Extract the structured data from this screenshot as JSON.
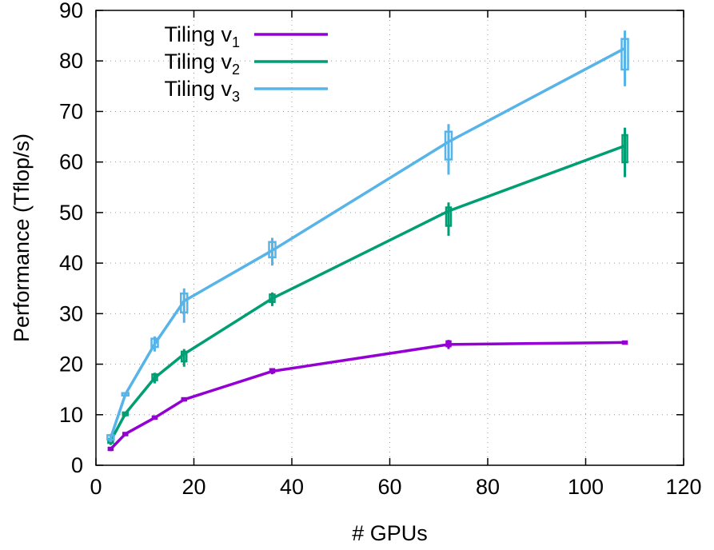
{
  "chart_data": {
    "type": "line",
    "xlabel": "# GPUs",
    "ylabel": "Performance (Tflop/s)",
    "xlim": [
      0,
      120
    ],
    "ylim": [
      0,
      90
    ],
    "xticks": [
      0,
      20,
      40,
      60,
      80,
      100,
      120
    ],
    "yticks": [
      0,
      10,
      20,
      30,
      40,
      50,
      60,
      70,
      80,
      90
    ],
    "grid": true,
    "legend_position": "top-left",
    "series": [
      {
        "name": "Tiling v",
        "subscript": "1",
        "color": "#9400d3",
        "x": [
          3,
          6,
          12,
          18,
          36,
          72,
          108
        ],
        "y": [
          3.2,
          6.2,
          9.4,
          13.0,
          18.6,
          23.9,
          24.3
        ],
        "err_low": [
          2.8,
          5.9,
          9.0,
          12.6,
          18.0,
          23.0,
          24.0
        ],
        "err_high": [
          3.6,
          6.5,
          9.8,
          13.4,
          19.2,
          24.8,
          24.6
        ]
      },
      {
        "name": "Tiling v",
        "subscript": "2",
        "color": "#009e73",
        "x": [
          3,
          6,
          12,
          18,
          36,
          72,
          108
        ],
        "y": [
          4.8,
          10.2,
          17.3,
          22.0,
          33.0,
          50.3,
          63.2
        ],
        "err_low": [
          4.0,
          9.6,
          16.2,
          19.5,
          31.5,
          45.4,
          57.0
        ],
        "err_high": [
          5.4,
          10.6,
          18.3,
          23.0,
          34.2,
          52.0,
          66.8
        ]
      },
      {
        "name": "Tiling v",
        "subscript": "3",
        "color": "#56b4e9",
        "x": [
          3,
          6,
          12,
          18,
          36,
          72,
          108
        ],
        "y": [
          5.4,
          14.0,
          24.0,
          32.5,
          42.5,
          64.0,
          82.5
        ],
        "err_low": [
          4.6,
          13.6,
          22.5,
          28.2,
          39.5,
          57.5,
          75.0
        ],
        "err_high": [
          6.2,
          14.4,
          25.5,
          35.0,
          45.0,
          67.5,
          86.0
        ]
      }
    ]
  }
}
